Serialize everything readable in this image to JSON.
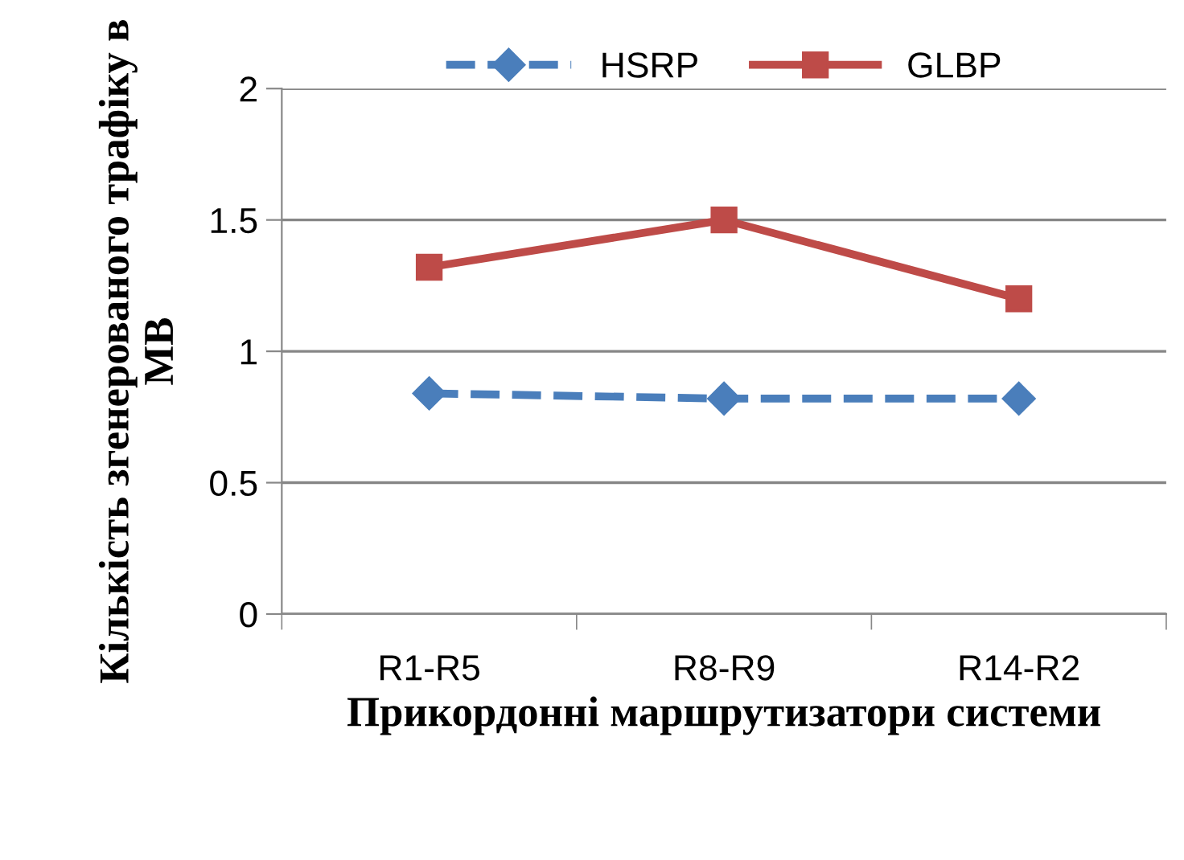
{
  "chart_data": {
    "type": "line",
    "xlabel": "Прикордонні маршрутизатори системи",
    "ylabel": "Кількість згенерованого трафіку в МВ",
    "categories": [
      "R1-R5",
      "R8-R9",
      "R14-R2"
    ],
    "series": [
      {
        "name": "HSRP",
        "color": "#4a7ebb",
        "values": [
          0.84,
          0.82,
          0.82
        ],
        "marker": "diamond",
        "line_style": "dashed"
      },
      {
        "name": "GLBP",
        "color": "#be4b48",
        "values": [
          1.32,
          1.5,
          1.2
        ],
        "marker": "square",
        "line_style": "solid"
      }
    ],
    "ylim": [
      0,
      2
    ],
    "yticks": [
      0,
      0.5,
      1,
      1.5,
      2
    ],
    "grid": "y",
    "legend": "top"
  }
}
